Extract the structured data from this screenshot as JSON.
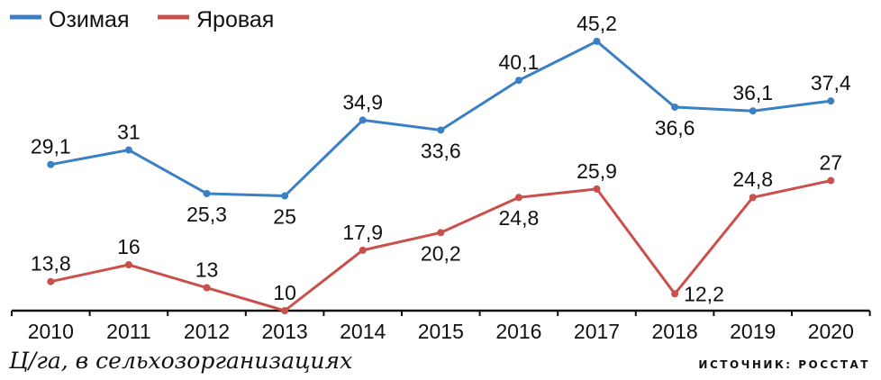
{
  "chart_data": {
    "type": "line",
    "categories": [
      "2010",
      "2011",
      "2012",
      "2013",
      "2014",
      "2015",
      "2016",
      "2017",
      "2018",
      "2019",
      "2020"
    ],
    "series": [
      {
        "name": "Озимая",
        "color": "#3b7fc4",
        "values": [
          29.1,
          31,
          25.3,
          25,
          34.9,
          33.6,
          40.1,
          45.2,
          36.6,
          36.1,
          37.4
        ],
        "labels": [
          "29,1",
          "31",
          "25,3",
          "25",
          "34,9",
          "33,6",
          "40,1",
          "45,2",
          "36,6",
          "36,1",
          "37,4"
        ],
        "label_pos": [
          "above",
          "above",
          "below",
          "below",
          "above",
          "below",
          "above",
          "above",
          "below",
          "above",
          "above"
        ]
      },
      {
        "name": "Яровая",
        "color": "#c9504b",
        "values": [
          13.8,
          16,
          13,
          10,
          17.9,
          20.2,
          24.8,
          25.9,
          12.2,
          24.8,
          27
        ],
        "labels": [
          "13,8",
          "16",
          "13",
          "10",
          "17,9",
          "20,2",
          "24,8",
          "25,9",
          "12,2",
          "24,8",
          "27"
        ],
        "label_pos": [
          "above",
          "above",
          "above",
          "above",
          "above",
          "below",
          "below",
          "above",
          "right",
          "above",
          "above"
        ]
      }
    ],
    "ylim": [
      10,
      50.6
    ],
    "ylabel": "Ц/га, в сельхозорганизациях",
    "legend": "top-left",
    "grid": false
  },
  "footer": {
    "unit": "Ц/га, в сельхозорганизациях",
    "source": "ИСТОЧНИК: РОССТАТ"
  }
}
